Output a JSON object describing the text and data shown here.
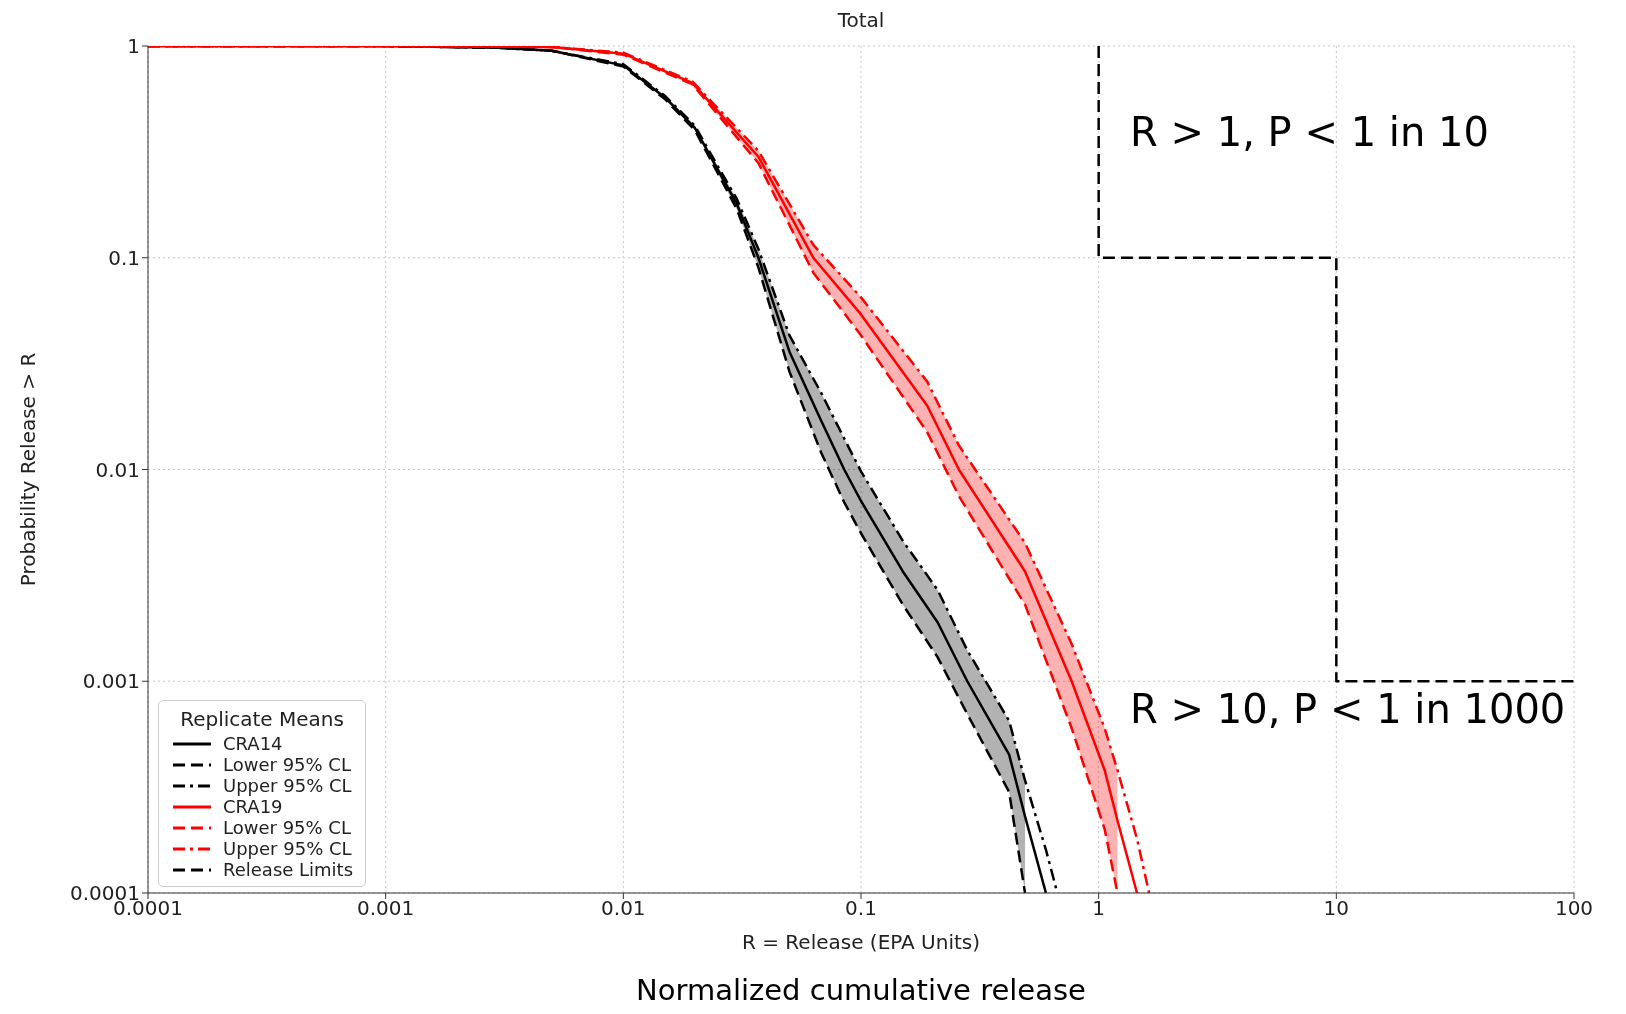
{
  "chart_data": {
    "type": "line",
    "title": "Total",
    "xlabel": "R = Release (EPA Units)",
    "ylabel": "Probability Release > R",
    "legend_title": "Replicate Means",
    "log": "xy",
    "grid": true,
    "legend": "bottom left",
    "xlim": [
      0.0001,
      100
    ],
    "xticks": [
      0.0001,
      0.001,
      0.01,
      0.1,
      1,
      10,
      100
    ],
    "ylim": [
      0.0001,
      1
    ],
    "yticks": [
      0.0001,
      0.001,
      0.01,
      0.1,
      1
    ],
    "series": [
      {
        "name": "CRA14",
        "color": "#000000",
        "line_style": "solid",
        "x": [
          0.0001,
          0.001,
          0.003,
          0.005,
          0.01,
          0.015,
          0.02,
          0.025,
          0.03,
          0.037,
          0.05,
          0.068,
          0.085,
          0.1,
          0.15,
          0.21,
          0.28,
          0.42,
          0.49,
          0.6
        ],
        "values": [
          1,
          1,
          0.98,
          0.95,
          0.81,
          0.57,
          0.41,
          0.26,
          0.18,
          0.1,
          0.036,
          0.017,
          0.01,
          0.0071,
          0.0033,
          0.0019,
          0.001,
          0.00045,
          0.00023,
          0.0001
        ],
        "lower": [
          1,
          1,
          0.98,
          0.95,
          0.8,
          0.56,
          0.4,
          0.25,
          0.17,
          0.09,
          0.029,
          0.012,
          0.007,
          0.005,
          0.0023,
          0.0013,
          0.0007,
          0.0003,
          0.0001,
          null
        ],
        "upper": [
          1,
          1,
          0.98,
          0.95,
          0.82,
          0.58,
          0.42,
          0.27,
          0.19,
          0.11,
          0.043,
          0.023,
          0.014,
          0.0098,
          0.0046,
          0.0027,
          0.0014,
          0.00065,
          0.00034,
          null
        ]
      },
      {
        "name": "Lower 95% CL",
        "color": "#000000",
        "line_style": "dashed",
        "x": [
          0.0001,
          0.001,
          0.003,
          0.005,
          0.01,
          0.015,
          0.02,
          0.025,
          0.03,
          0.037,
          0.05,
          0.068,
          0.085,
          0.1,
          0.15,
          0.21,
          0.28,
          0.42,
          0.49
        ],
        "values": [
          1,
          1,
          0.98,
          0.95,
          0.8,
          0.56,
          0.4,
          0.25,
          0.17,
          0.09,
          0.029,
          0.012,
          0.007,
          0.005,
          0.0023,
          0.0013,
          0.0007,
          0.0003,
          0.0001
        ]
      },
      {
        "name": "Upper 95% CL",
        "color": "#000000",
        "line_style": "dashdot",
        "x": [
          0.0001,
          0.001,
          0.003,
          0.005,
          0.01,
          0.015,
          0.02,
          0.025,
          0.03,
          0.037,
          0.05,
          0.068,
          0.085,
          0.1,
          0.15,
          0.21,
          0.28,
          0.42,
          0.49,
          0.6,
          0.67
        ],
        "values": [
          1,
          1,
          0.98,
          0.95,
          0.82,
          0.58,
          0.42,
          0.27,
          0.19,
          0.11,
          0.043,
          0.023,
          0.014,
          0.0098,
          0.0046,
          0.0027,
          0.0014,
          0.00065,
          0.00034,
          0.00016,
          0.0001
        ]
      },
      {
        "name": "CRA19",
        "color": "#ff0000",
        "line_style": "solid",
        "x": [
          0.0001,
          0.001,
          0.005,
          0.01,
          0.0195,
          0.037,
          0.063,
          0.1,
          0.19,
          0.258,
          0.49,
          0.77,
          1.06,
          1.2,
          1.45
        ],
        "values": [
          1,
          1,
          0.99,
          0.92,
          0.67,
          0.3,
          0.1,
          0.054,
          0.02,
          0.01,
          0.0033,
          0.001,
          0.00038,
          0.00022,
          0.0001
        ],
        "lower": [
          1,
          1,
          0.99,
          0.91,
          0.66,
          0.28,
          0.085,
          0.043,
          0.015,
          0.0075,
          0.0023,
          0.0006,
          0.0002,
          0.0001,
          null
        ],
        "upper": [
          1,
          1,
          0.99,
          0.93,
          0.68,
          0.32,
          0.115,
          0.065,
          0.026,
          0.013,
          0.0045,
          0.0015,
          0.0006,
          0.00038,
          null
        ]
      },
      {
        "name": "Lower 95% CL",
        "color": "#ff0000",
        "line_style": "dashed",
        "x": [
          0.0001,
          0.001,
          0.005,
          0.01,
          0.0195,
          0.037,
          0.063,
          0.1,
          0.19,
          0.258,
          0.49,
          0.77,
          1.06,
          1.2
        ],
        "values": [
          1,
          1,
          0.99,
          0.91,
          0.66,
          0.28,
          0.085,
          0.043,
          0.015,
          0.0075,
          0.0023,
          0.0006,
          0.0002,
          0.0001
        ]
      },
      {
        "name": "Upper 95% CL",
        "color": "#ff0000",
        "line_style": "dashdot",
        "x": [
          0.0001,
          0.001,
          0.005,
          0.01,
          0.0195,
          0.037,
          0.063,
          0.1,
          0.19,
          0.258,
          0.49,
          0.77,
          1.06,
          1.2,
          1.45,
          1.63
        ],
        "values": [
          1,
          1,
          0.99,
          0.93,
          0.68,
          0.32,
          0.115,
          0.065,
          0.026,
          0.013,
          0.0045,
          0.0015,
          0.0006,
          0.00038,
          0.00018,
          0.0001
        ]
      },
      {
        "name": "Release Limits",
        "color": "#000000",
        "line_style": "dashed",
        "x": [
          1,
          1,
          10,
          10,
          100
        ],
        "values": [
          1,
          0.1,
          0.1,
          0.001,
          0.001
        ]
      }
    ],
    "annotations": [
      "R > 1, P < 1 in 10",
      "R > 10, P < 1 in 1000",
      "Normalized cumulative release"
    ]
  }
}
